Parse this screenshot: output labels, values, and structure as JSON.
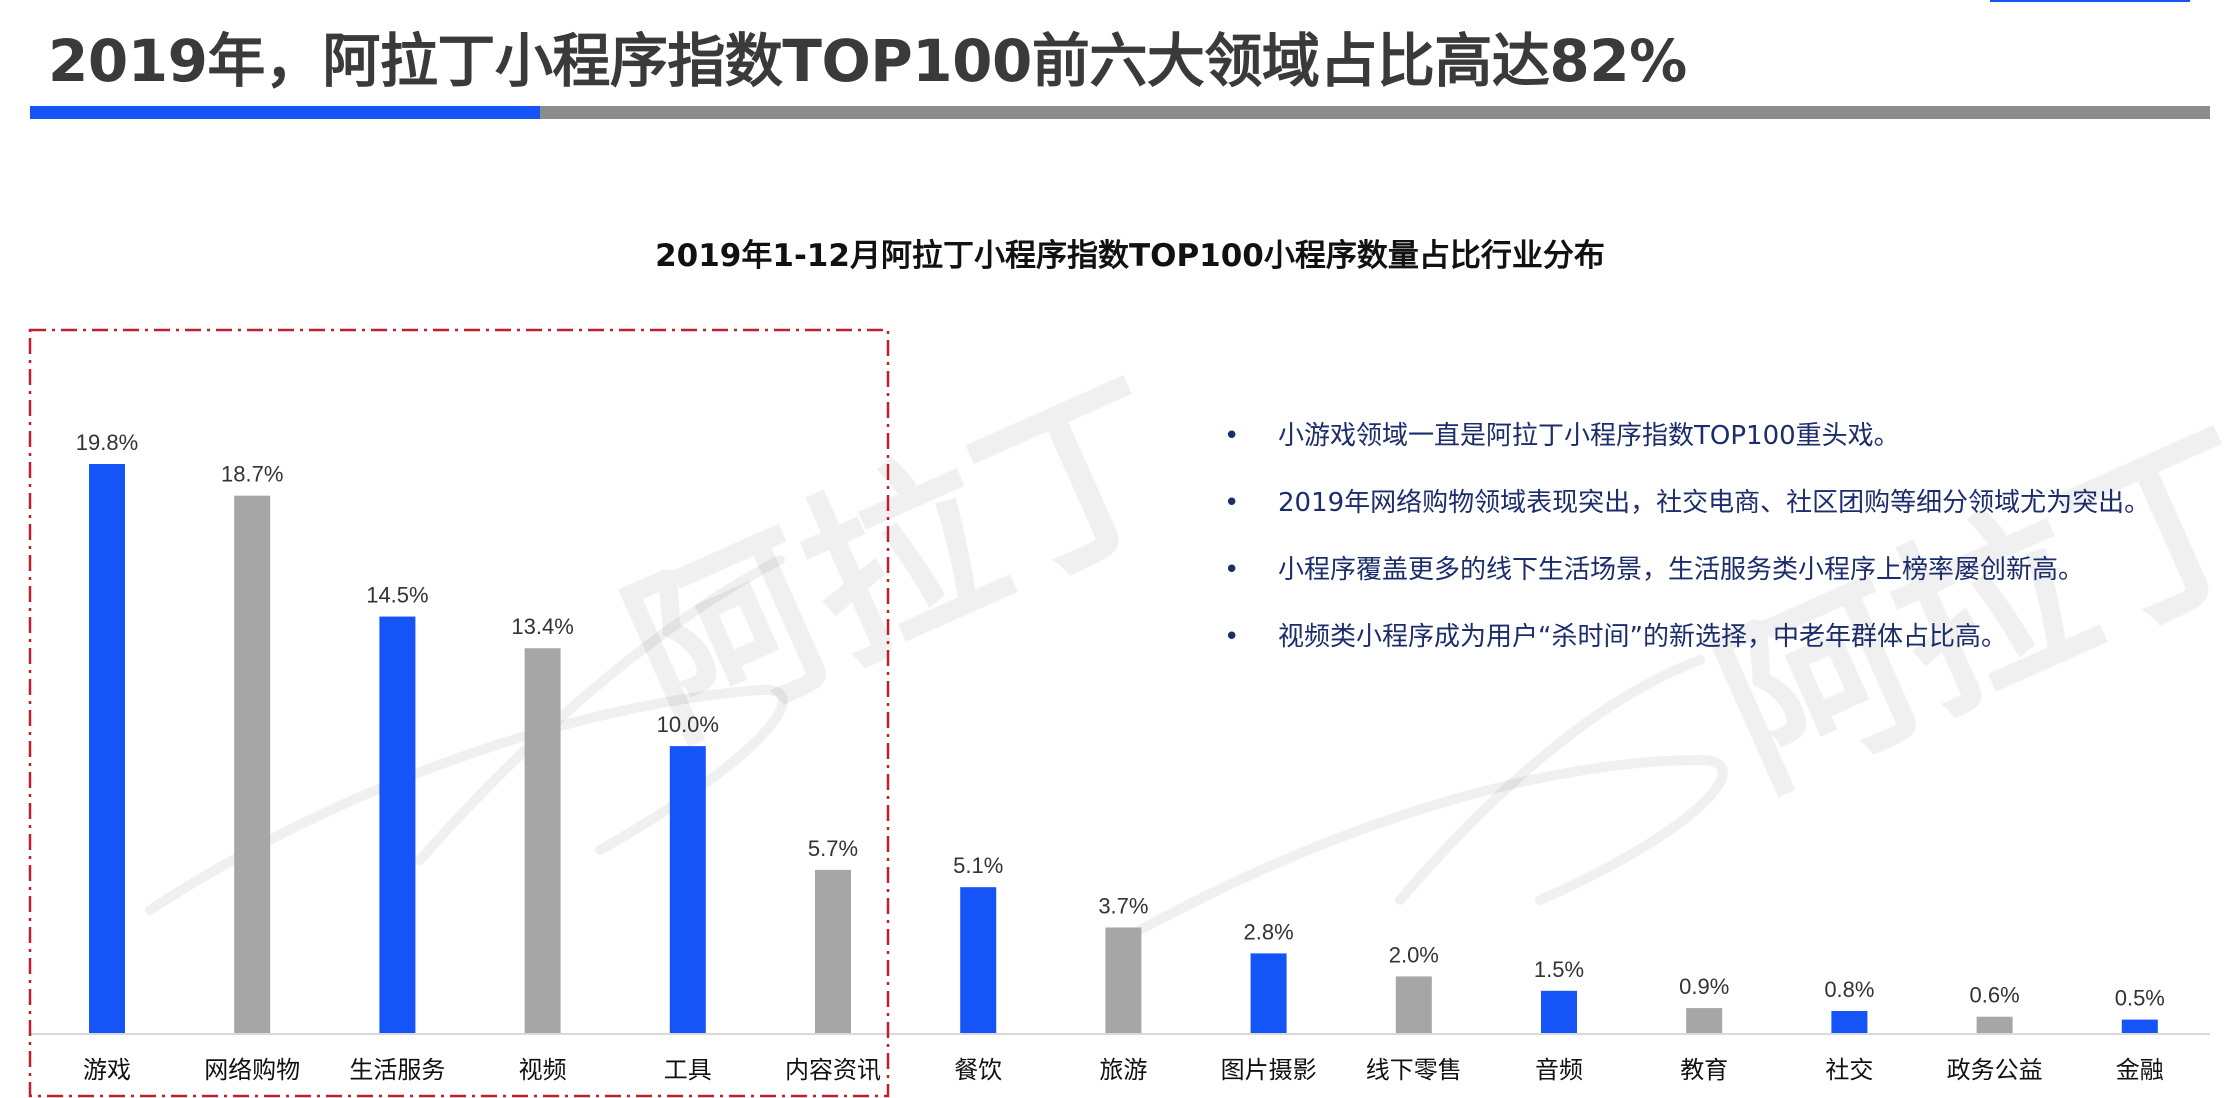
{
  "page": {
    "title": "2019年，阿拉丁小程序指数TOP100前六大领域占比高达82%"
  },
  "colors": {
    "primary": "#1554f6",
    "secondary": "#a6a6a6",
    "highlight_box": "#c0202e",
    "note_text": "#1c2d6b"
  },
  "watermark": {
    "text": "阿拉丁"
  },
  "chart_data": {
    "type": "bar",
    "title": "2019年1-12月阿拉丁小程序指数TOP100小程序数量占比行业分布",
    "categories": [
      "游戏",
      "网络购物",
      "生活服务",
      "视频",
      "工具",
      "内容资讯",
      "餐饮",
      "旅游",
      "图片摄影",
      "线下零售",
      "音频",
      "教育",
      "社交",
      "政务公益",
      "金融"
    ],
    "values": [
      19.8,
      18.7,
      14.5,
      13.4,
      10.0,
      5.7,
      5.1,
      3.7,
      2.8,
      2.0,
      1.5,
      0.9,
      0.8,
      0.6,
      0.5
    ],
    "value_labels": [
      "19.8%",
      "18.7%",
      "14.5%",
      "13.4%",
      "10.0%",
      "5.7%",
      "5.1%",
      "3.7%",
      "2.8%",
      "2.0%",
      "1.5%",
      "0.9%",
      "0.8%",
      "0.6%",
      "0.5%"
    ],
    "bar_colors": [
      "#1554f6",
      "#a6a6a6",
      "#1554f6",
      "#a6a6a6",
      "#1554f6",
      "#a6a6a6",
      "#1554f6",
      "#a6a6a6",
      "#1554f6",
      "#a6a6a6",
      "#1554f6",
      "#a6a6a6",
      "#1554f6",
      "#a6a6a6",
      "#1554f6"
    ],
    "xlabel": "",
    "ylabel": "",
    "ylim": [
      0,
      20
    ],
    "grid": false,
    "legend": "none",
    "highlight_group": {
      "from": 0,
      "to": 5,
      "style": "dash-dot box",
      "color": "#c0202e"
    }
  },
  "notes": [
    "小游戏领域一直是阿拉丁小程序指数TOP100重头戏。",
    "2019年网络购物领域表现突出，社交电商、社区团购等细分领域尤为突出。",
    "小程序覆盖更多的线下生活场景，生活服务类小程序上榜率屡创新高。",
    "视频类小程序成为用户“杀时间”的新选择，中老年群体占比高。"
  ],
  "note_bullet": "•"
}
